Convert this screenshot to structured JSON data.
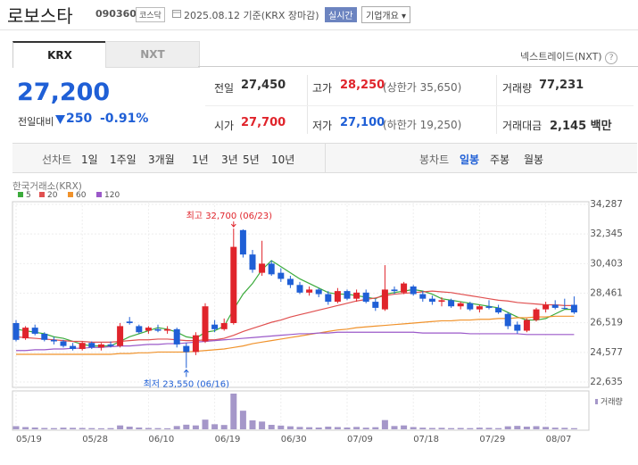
{
  "header": {
    "title": "로보스타",
    "code": "090360",
    "market": "코스닥",
    "date": "2025.08.12 기준(KRX 장마감)",
    "realtime": "실시간",
    "company": "기업개요"
  },
  "tabs": [
    "KRX",
    "NXT"
  ],
  "nxt_link": "넥스트레이드(NXT)",
  "quote": {
    "price": "27,200",
    "change_label": "전일대비",
    "change": "250",
    "change_rate": "-0.91%",
    "stats": [
      [
        {
          "label": "전일",
          "value": "27,450"
        },
        {
          "label": "고가",
          "value": "28,250",
          "extra": "(상한가 35,650)"
        },
        {
          "label": "거래량",
          "value": "77,231"
        }
      ],
      [
        {
          "label": "시가",
          "value": "27,700"
        },
        {
          "label": "저가",
          "value": "27,100",
          "extra": "(하한가 19,250)"
        },
        {
          "label": "거래대금",
          "value": "2,145 백만"
        }
      ]
    ]
  },
  "periods": {
    "line_label": "선차트",
    "line": [
      "1일",
      "1주일",
      "3개월",
      "1년",
      "3년",
      "5년",
      "10년"
    ],
    "candle_label": "봉차트",
    "candle": [
      "일봉",
      "주봉",
      "월봉"
    ],
    "active": "일봉"
  },
  "chart_data": {
    "type": "candlestick",
    "subtitle": "한국거래소(KRX)",
    "grid": true,
    "up_color": "#e0242b",
    "down_color": "#1f5fd6",
    "categories": [
      "05/19",
      null,
      null,
      null,
      null,
      null,
      null,
      "05/28",
      null,
      null,
      null,
      null,
      null,
      null,
      "06/10",
      null,
      null,
      null,
      null,
      null,
      null,
      "06/19",
      null,
      null,
      null,
      null,
      null,
      null,
      "06/30",
      null,
      null,
      null,
      null,
      null,
      null,
      "07/09",
      null,
      null,
      null,
      null,
      null,
      null,
      "07/18",
      null,
      null,
      null,
      null,
      null,
      null,
      "07/29",
      null,
      null,
      null,
      null,
      null,
      null,
      "08/07",
      null,
      null,
      null
    ],
    "open": [
      26500,
      25500,
      26200,
      25800,
      25400,
      25300,
      25000,
      24800,
      25200,
      24900,
      25100,
      25000,
      26600,
      26300,
      26000,
      26100,
      26000,
      26100,
      25000,
      24600,
      25300,
      26400,
      26100,
      26500,
      32600,
      31000,
      29800,
      30400,
      29800,
      29400,
      29000,
      28500,
      28700,
      28400,
      27900,
      28600,
      28100,
      28500,
      27900,
      27400,
      28700,
      28500,
      28900,
      28400,
      28100,
      27900,
      28000,
      27600,
      27800,
      27400,
      27600,
      27500,
      27100,
      26400,
      26000,
      26700,
      27400,
      27700,
      27500,
      27700
    ],
    "high": [
      26700,
      26300,
      26400,
      25900,
      25600,
      25400,
      25200,
      25300,
      25300,
      25200,
      25300,
      26500,
      26900,
      26400,
      26300,
      26400,
      26300,
      26200,
      25200,
      25900,
      27800,
      26700,
      26800,
      32700,
      32650,
      31300,
      31900,
      30600,
      30100,
      29600,
      29200,
      28900,
      28800,
      28600,
      28800,
      28700,
      28700,
      28700,
      28100,
      30300,
      28900,
      29200,
      29000,
      28600,
      28300,
      28200,
      28100,
      27900,
      27900,
      27700,
      28000,
      27700,
      27200,
      26600,
      26800,
      27500,
      27900,
      28000,
      28100,
      28250
    ],
    "low": [
      25300,
      25400,
      25700,
      25300,
      25100,
      24900,
      24700,
      24700,
      24800,
      24700,
      24900,
      24900,
      26400,
      25800,
      25800,
      25900,
      25800,
      24900,
      23550,
      24400,
      25200,
      25900,
      26000,
      26400,
      30800,
      29800,
      29600,
      29600,
      29200,
      28800,
      28400,
      28300,
      28200,
      27700,
      27800,
      28000,
      27900,
      27800,
      27300,
      27300,
      28400,
      28400,
      28300,
      27900,
      27700,
      27600,
      27500,
      27400,
      27300,
      27200,
      27400,
      27100,
      26100,
      25800,
      25900,
      26600,
      27200,
      27400,
      27400,
      27100
    ],
    "close": [
      25400,
      26200,
      25800,
      25400,
      25300,
      25000,
      24800,
      25200,
      24900,
      25100,
      25000,
      26300,
      26500,
      25900,
      26200,
      26000,
      26100,
      25100,
      24600,
      25700,
      27600,
      26100,
      26500,
      31500,
      31000,
      30000,
      30400,
      29700,
      29400,
      29000,
      28500,
      28700,
      28400,
      27900,
      28600,
      28100,
      28500,
      27900,
      27500,
      28700,
      28600,
      29100,
      28400,
      28100,
      27900,
      28000,
      27600,
      27800,
      27400,
      27600,
      27500,
      27200,
      26300,
      26000,
      26700,
      27400,
      27700,
      27500,
      27450,
      27200
    ],
    "series": [
      {
        "name": "5",
        "color": "#3cab3c",
        "values": [
          26100,
          26000,
          25900,
          25800,
          25600,
          25500,
          25300,
          25100,
          25000,
          25000,
          25000,
          25300,
          25600,
          25800,
          26000,
          26200,
          26100,
          25900,
          25600,
          25500,
          25900,
          26000,
          26300,
          27400,
          28400,
          29100,
          30000,
          30600,
          30200,
          29800,
          29400,
          29100,
          28800,
          28500,
          28400,
          28400,
          28300,
          28200,
          28100,
          28400,
          28500,
          28600,
          28700,
          28600,
          28400,
          28100,
          28000,
          27900,
          27800,
          27700,
          27600,
          27500,
          27200,
          26900,
          26700,
          26700,
          26800,
          27100,
          27400,
          27400
        ]
      },
      {
        "name": "20",
        "color": "#e05050",
        "values": [
          25600,
          25550,
          25500,
          25450,
          25400,
          25350,
          25300,
          25300,
          25250,
          25250,
          25250,
          25300,
          25350,
          25400,
          25400,
          25450,
          25450,
          25400,
          25350,
          25350,
          25400,
          25400,
          25500,
          25700,
          25950,
          26150,
          26350,
          26550,
          26700,
          26900,
          27050,
          27200,
          27350,
          27500,
          27650,
          27800,
          27950,
          28050,
          28150,
          28300,
          28400,
          28450,
          28500,
          28550,
          28600,
          28550,
          28500,
          28400,
          28300,
          28200,
          28100,
          28000,
          27950,
          27850,
          27800,
          27750,
          27700,
          27700,
          27650,
          27650
        ]
      },
      {
        "name": "60",
        "color": "#f0922b",
        "values": [
          24450,
          24450,
          24450,
          24450,
          24450,
          24450,
          24450,
          24450,
          24450,
          24450,
          24450,
          24500,
          24500,
          24550,
          24550,
          24600,
          24600,
          24600,
          24600,
          24650,
          24700,
          24750,
          24800,
          24900,
          25000,
          25150,
          25250,
          25350,
          25450,
          25550,
          25650,
          25750,
          25850,
          25950,
          26050,
          26100,
          26200,
          26250,
          26300,
          26350,
          26400,
          26450,
          26500,
          26550,
          26600,
          26650,
          26650,
          26700,
          26700,
          26750,
          26750,
          26800,
          26800,
          26850,
          26850,
          26900,
          26900,
          26950,
          26950,
          26950
        ]
      },
      {
        "name": "120",
        "color": "#9b59c9",
        "values": [
          24700,
          24700,
          24750,
          24750,
          24800,
          24800,
          24850,
          24850,
          24900,
          24900,
          24950,
          25000,
          25000,
          25050,
          25100,
          25100,
          25150,
          25150,
          25200,
          25250,
          25300,
          25350,
          25400,
          25450,
          25500,
          25550,
          25600,
          25650,
          25700,
          25750,
          25800,
          25800,
          25850,
          25850,
          25900,
          25900,
          25900,
          25900,
          25900,
          25900,
          25900,
          25900,
          25900,
          25850,
          25850,
          25850,
          25850,
          25850,
          25800,
          25800,
          25800,
          25800,
          25800,
          25800,
          25750,
          25750,
          25750,
          25750,
          25750,
          25750
        ]
      }
    ],
    "volume": {
      "name": "거래량",
      "color": "#a597c9",
      "values": [
        210000,
        150000,
        120000,
        90000,
        80000,
        110000,
        100000,
        90000,
        80000,
        70000,
        80000,
        260000,
        180000,
        120000,
        90000,
        80000,
        70000,
        220000,
        310000,
        260000,
        650000,
        340000,
        290000,
        2400000,
        1250000,
        600000,
        520000,
        300000,
        250000,
        200000,
        160000,
        140000,
        120000,
        180000,
        150000,
        120000,
        160000,
        110000,
        140000,
        620000,
        220000,
        260000,
        150000,
        110000,
        90000,
        100000,
        80000,
        90000,
        80000,
        110000,
        100000,
        80000,
        200000,
        230000,
        180000,
        210000,
        160000,
        110000,
        100000,
        77231
      ]
    },
    "annotations": [
      {
        "text": "최고 32,700 (06/23)",
        "value": 32700
      },
      {
        "text": "최저 23,550 (06/16)",
        "value": 23550
      }
    ],
    "ylim": [
      22635,
      34287
    ],
    "yticks": [
      {
        "value": 34287,
        "label": "34,287"
      },
      {
        "value": 32345,
        "label": "32,345"
      },
      {
        "value": 30403,
        "label": "30,403"
      },
      {
        "value": 28461,
        "label": "28,461"
      },
      {
        "value": 26519,
        "label": "26,519"
      },
      {
        "value": 24577,
        "label": "24,577"
      },
      {
        "value": 22635,
        "label": "22,635"
      }
    ]
  }
}
